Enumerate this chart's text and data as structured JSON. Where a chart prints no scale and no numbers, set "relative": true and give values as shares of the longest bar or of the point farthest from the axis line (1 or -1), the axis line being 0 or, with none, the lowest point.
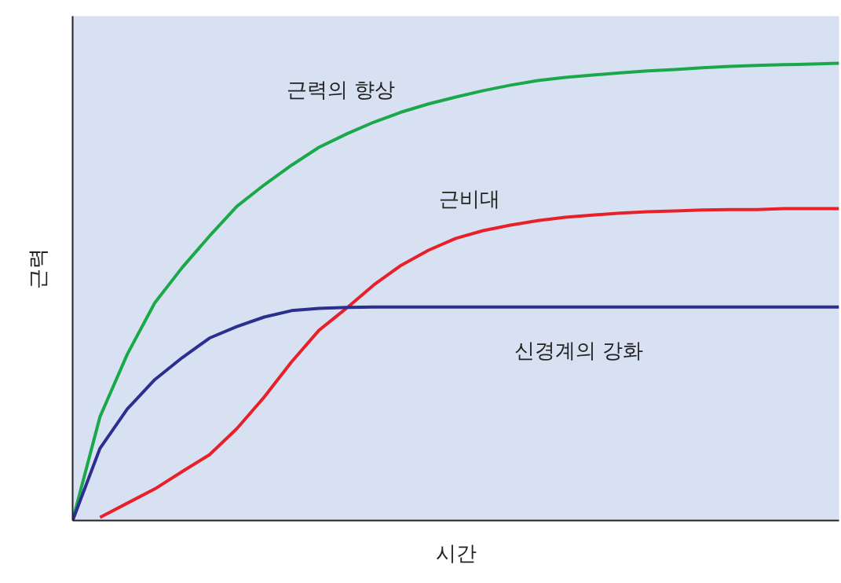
{
  "chart_data": {
    "type": "line",
    "relative": true,
    "xlabel": "시간",
    "ylabel": "근력",
    "categories": [
      null,
      null,
      null,
      null,
      null,
      null,
      null,
      null,
      null,
      null,
      null,
      null,
      null,
      null,
      null,
      null,
      null,
      null,
      null,
      null,
      null,
      null,
      null,
      null,
      null,
      null,
      null,
      null,
      null
    ],
    "series": [
      {
        "name": "근력의 향상",
        "color": "#1aa84a",
        "values": [
          0,
          0.227,
          0.364,
          0.476,
          0.553,
          0.622,
          0.687,
          0.734,
          0.777,
          0.816,
          0.845,
          0.871,
          0.893,
          0.911,
          0.926,
          0.94,
          0.952,
          0.962,
          0.969,
          0.974,
          0.979,
          0.983,
          0.986,
          0.99,
          0.993,
          0.995,
          0.997,
          0.998,
          1
        ]
      },
      {
        "name": "근비대",
        "color": "#e8202a",
        "values": [
          null,
          0.007,
          0.038,
          0.069,
          0.107,
          0.144,
          0.201,
          0.27,
          0.347,
          0.416,
          0.464,
          0.515,
          0.558,
          0.591,
          0.617,
          0.634,
          0.646,
          0.656,
          0.663,
          0.668,
          0.672,
          0.675,
          0.677,
          0.679,
          0.68,
          0.68,
          0.682,
          0.682,
          0.682
        ]
      },
      {
        "name": "신경계의 강화",
        "color": "#2b2f8f",
        "values": [
          0,
          0.158,
          0.244,
          0.308,
          0.356,
          0.399,
          0.424,
          0.445,
          0.459,
          0.464,
          0.466,
          0.467,
          0.467,
          0.467,
          0.467,
          0.467,
          0.467,
          0.467,
          0.467,
          0.467,
          0.467,
          0.467,
          0.467,
          0.467,
          0.467,
          0.467,
          0.467,
          0.467,
          0.467
        ]
      }
    ]
  }
}
